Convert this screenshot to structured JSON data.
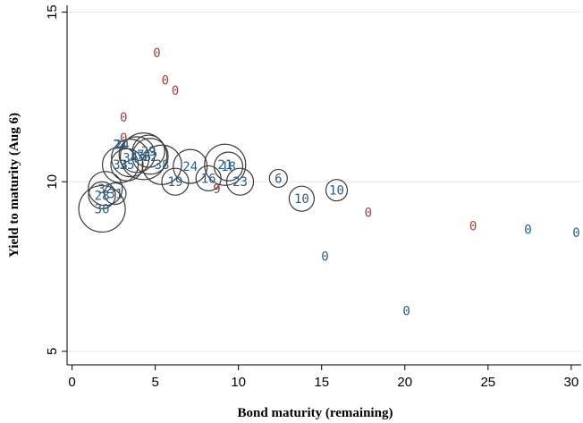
{
  "chart_data": {
    "type": "scatter",
    "title": "",
    "xlabel": "Bond maturity (remaining)",
    "ylabel": "Yield to maturity (Aug 6)",
    "xlim": [
      -0.3,
      30.6
    ],
    "ylim": [
      4.6,
      15.2
    ],
    "xticks": [
      0,
      5,
      10,
      15,
      20,
      25,
      30
    ],
    "yticks": [
      5,
      10,
      15
    ],
    "grid": "horizontal",
    "legend": "none",
    "colors": {
      "red": "#a0413a",
      "blue": "#2b5c86",
      "bubble": "#3a3a3a"
    },
    "points": [
      {
        "x": 5.1,
        "y": 13.8,
        "label": "0",
        "color": "red"
      },
      {
        "x": 5.6,
        "y": 13.0,
        "label": "0",
        "color": "red"
      },
      {
        "x": 6.2,
        "y": 12.7,
        "label": "0",
        "color": "red"
      },
      {
        "x": 3.1,
        "y": 11.9,
        "label": "0",
        "color": "red"
      },
      {
        "x": 3.1,
        "y": 11.3,
        "label": "0",
        "color": "red"
      },
      {
        "x": 8.7,
        "y": 9.8,
        "label": "9",
        "color": "red"
      },
      {
        "x": 17.8,
        "y": 9.1,
        "label": "0",
        "color": "red"
      },
      {
        "x": 24.1,
        "y": 8.7,
        "label": "0",
        "color": "red"
      },
      {
        "x": 27.4,
        "y": 8.6,
        "label": "0",
        "color": "blue"
      },
      {
        "x": 30.3,
        "y": 8.5,
        "label": "0",
        "color": "blue"
      },
      {
        "x": 15.2,
        "y": 7.8,
        "label": "0",
        "color": "blue"
      },
      {
        "x": 20.1,
        "y": 6.2,
        "label": "0",
        "color": "blue"
      },
      {
        "x": 1.8,
        "y": 9.2,
        "label": "30",
        "color": "blue",
        "r": 26
      },
      {
        "x": 1.8,
        "y": 9.6,
        "label": "28",
        "color": "blue",
        "r": 15
      },
      {
        "x": 2.0,
        "y": 9.8,
        "label": "32",
        "color": "blue",
        "r": 19
      },
      {
        "x": 2.6,
        "y": 9.65,
        "label": "31",
        "color": "blue",
        "r": 12
      },
      {
        "x": 2.9,
        "y": 11.1,
        "label": "21",
        "color": "blue"
      },
      {
        "x": 3.0,
        "y": 11.1,
        "label": "24",
        "color": "blue"
      },
      {
        "x": 2.9,
        "y": 10.5,
        "label": "33",
        "color": "blue",
        "r": 20
      },
      {
        "x": 3.3,
        "y": 10.5,
        "label": "35",
        "color": "blue",
        "r": 18
      },
      {
        "x": 3.5,
        "y": 10.7,
        "label": "34",
        "color": "blue",
        "r": 21
      },
      {
        "x": 3.9,
        "y": 10.8,
        "label": "37",
        "color": "blue",
        "r": 20
      },
      {
        "x": 4.3,
        "y": 10.75,
        "label": "36",
        "color": "blue",
        "r": 26
      },
      {
        "x": 4.6,
        "y": 10.9,
        "label": "29",
        "color": "blue",
        "r": 18
      },
      {
        "x": 4.7,
        "y": 10.75,
        "label": "22",
        "color": "blue",
        "r": 20
      },
      {
        "x": 5.4,
        "y": 10.5,
        "label": "38",
        "color": "blue",
        "r": 22
      },
      {
        "x": 6.2,
        "y": 10.0,
        "label": "19",
        "color": "blue",
        "r": 15
      },
      {
        "x": 7.1,
        "y": 10.45,
        "label": "24",
        "color": "blue",
        "r": 19
      },
      {
        "x": 8.2,
        "y": 10.1,
        "label": "16",
        "color": "blue",
        "r": 14
      },
      {
        "x": 9.2,
        "y": 10.5,
        "label": "21",
        "color": "blue",
        "r": 23
      },
      {
        "x": 9.4,
        "y": 10.45,
        "label": "18",
        "color": "blue",
        "r": 16
      },
      {
        "x": 10.1,
        "y": 10.0,
        "label": "23",
        "color": "blue",
        "r": 15
      },
      {
        "x": 12.4,
        "y": 10.1,
        "label": "6",
        "color": "blue",
        "r": 10
      },
      {
        "x": 13.8,
        "y": 9.5,
        "label": "10",
        "color": "blue",
        "r": 14
      },
      {
        "x": 15.9,
        "y": 9.75,
        "label": "10",
        "color": "blue",
        "r": 12
      }
    ]
  }
}
